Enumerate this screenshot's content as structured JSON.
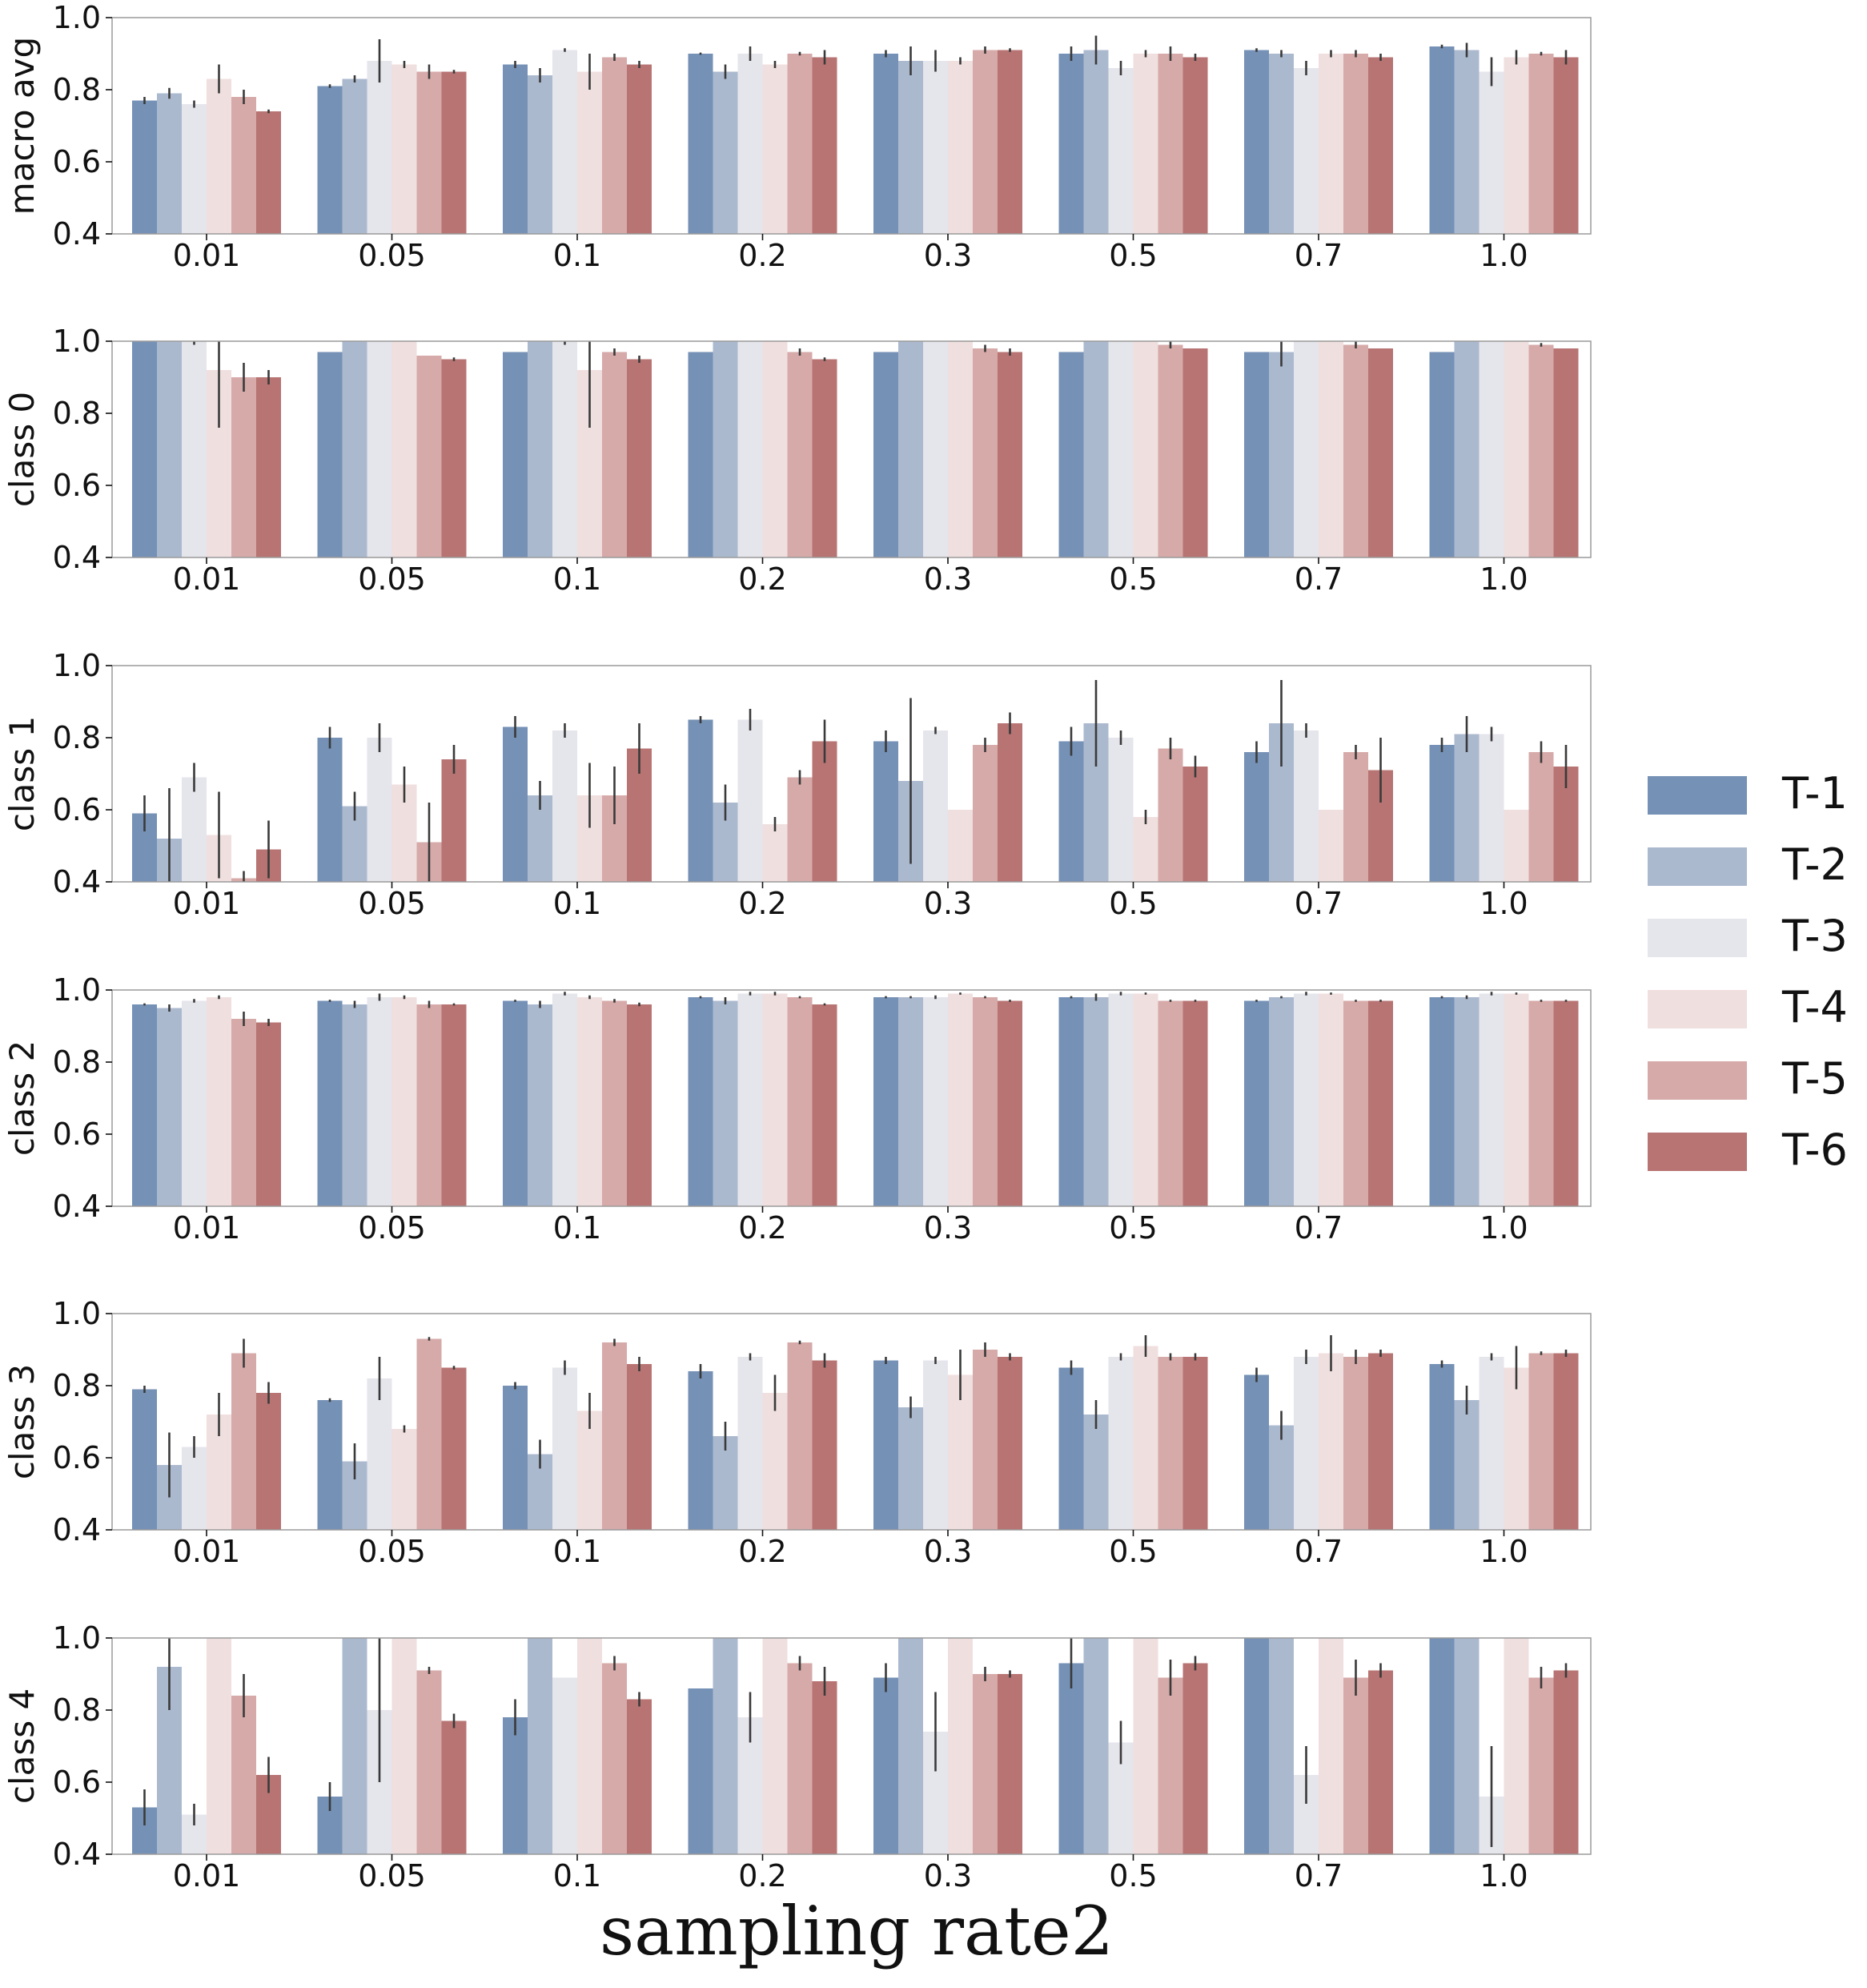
{
  "chart_data": {
    "type": "bar",
    "xlabel": "sampling rate2",
    "categories": [
      "0.01",
      "0.05",
      "0.1",
      "0.2",
      "0.3",
      "0.5",
      "0.7",
      "1.0"
    ],
    "legend": {
      "placement": "right",
      "entries": [
        {
          "name": "T-1",
          "color": "#7591b6"
        },
        {
          "name": "T-2",
          "color": "#abb9cf"
        },
        {
          "name": "T-3",
          "color": "#e5e5ec"
        },
        {
          "name": "T-4",
          "color": "#f0dfdf"
        },
        {
          "name": "T-5",
          "color": "#d6aaa9"
        },
        {
          "name": "T-6",
          "color": "#b77473"
        }
      ]
    },
    "panels": [
      {
        "ylabel": "macro avg",
        "ylim": [
          0.4,
          1.0
        ],
        "yticks": [
          "0.4",
          "0.6",
          "0.8",
          "1.0"
        ],
        "series": [
          {
            "name": "T-1",
            "values": [
              0.77,
              0.81,
              0.87,
              0.9,
              0.9,
              0.9,
              0.91,
              0.92
            ],
            "err": [
              0.01,
              0.005,
              0.01,
              0.003,
              0.01,
              0.02,
              0.005,
              0.005
            ]
          },
          {
            "name": "T-2",
            "values": [
              0.79,
              0.83,
              0.84,
              0.85,
              0.88,
              0.91,
              0.9,
              0.91
            ],
            "err": [
              0.015,
              0.01,
              0.02,
              0.02,
              0.04,
              0.04,
              0.01,
              0.02
            ]
          },
          {
            "name": "T-3",
            "values": [
              0.76,
              0.88,
              0.91,
              0.9,
              0.88,
              0.86,
              0.86,
              0.85
            ],
            "err": [
              0.01,
              0.06,
              0.005,
              0.02,
              0.03,
              0.02,
              0.02,
              0.04
            ]
          },
          {
            "name": "T-4",
            "values": [
              0.83,
              0.87,
              0.85,
              0.87,
              0.88,
              0.9,
              0.9,
              0.89
            ],
            "err": [
              0.04,
              0.01,
              0.05,
              0.01,
              0.01,
              0.01,
              0.01,
              0.02
            ]
          },
          {
            "name": "T-5",
            "values": [
              0.78,
              0.85,
              0.89,
              0.9,
              0.91,
              0.9,
              0.9,
              0.9
            ],
            "err": [
              0.02,
              0.02,
              0.01,
              0.005,
              0.01,
              0.02,
              0.01,
              0.005
            ]
          },
          {
            "name": "T-6",
            "values": [
              0.74,
              0.85,
              0.87,
              0.89,
              0.91,
              0.89,
              0.89,
              0.89
            ],
            "err": [
              0.005,
              0.005,
              0.01,
              0.02,
              0.005,
              0.01,
              0.01,
              0.02
            ]
          }
        ]
      },
      {
        "ylabel": "class 0",
        "ylim": [
          0.4,
          1.0
        ],
        "yticks": [
          "0.4",
          "0.6",
          "0.8",
          "1.0"
        ],
        "series": [
          {
            "name": "T-1",
            "values": [
              1.0,
              0.97,
              0.97,
              0.97,
              0.97,
              0.97,
              0.97,
              0.97
            ],
            "err": [
              0,
              0,
              0,
              0,
              0,
              0,
              0,
              0
            ]
          },
          {
            "name": "T-2",
            "values": [
              1.0,
              1.0,
              1.0,
              1.0,
              1.0,
              1.0,
              0.97,
              1.0
            ],
            "err": [
              0,
              0,
              0,
              0,
              0,
              0,
              0.04,
              0
            ]
          },
          {
            "name": "T-3",
            "values": [
              1.0,
              1.0,
              1.0,
              1.0,
              1.0,
              1.0,
              1.0,
              1.0
            ],
            "err": [
              0.01,
              0,
              0.01,
              0,
              0,
              0,
              0,
              0
            ]
          },
          {
            "name": "T-4",
            "values": [
              0.92,
              1.0,
              0.92,
              1.0,
              1.0,
              1.0,
              1.0,
              1.0
            ],
            "err": [
              0.16,
              0,
              0.16,
              0,
              0,
              0,
              0,
              0
            ]
          },
          {
            "name": "T-5",
            "values": [
              0.9,
              0.96,
              0.97,
              0.97,
              0.98,
              0.99,
              0.99,
              0.99
            ],
            "err": [
              0.04,
              0,
              0.01,
              0.01,
              0.01,
              0.01,
              0.01,
              0.005
            ]
          },
          {
            "name": "T-6",
            "values": [
              0.9,
              0.95,
              0.95,
              0.95,
              0.97,
              0.98,
              0.98,
              0.98
            ],
            "err": [
              0.02,
              0.005,
              0.01,
              0.005,
              0.01,
              0,
              0,
              0
            ]
          }
        ]
      },
      {
        "ylabel": "class 1",
        "ylim": [
          0.4,
          1.0
        ],
        "yticks": [
          "0.4",
          "0.6",
          "0.8",
          "1.0"
        ],
        "series": [
          {
            "name": "T-1",
            "values": [
              0.59,
              0.8,
              0.83,
              0.85,
              0.79,
              0.79,
              0.76,
              0.78
            ],
            "err": [
              0.05,
              0.03,
              0.03,
              0.01,
              0.03,
              0.04,
              0.03,
              0.02
            ]
          },
          {
            "name": "T-2",
            "values": [
              0.52,
              0.61,
              0.64,
              0.62,
              0.68,
              0.84,
              0.84,
              0.81
            ],
            "err": [
              0.14,
              0.04,
              0.04,
              0.05,
              0.23,
              0.12,
              0.12,
              0.05
            ]
          },
          {
            "name": "T-3",
            "values": [
              0.69,
              0.8,
              0.82,
              0.85,
              0.82,
              0.8,
              0.82,
              0.81
            ],
            "err": [
              0.04,
              0.04,
              0.02,
              0.03,
              0.01,
              0.02,
              0.02,
              0.02
            ]
          },
          {
            "name": "T-4",
            "values": [
              0.53,
              0.67,
              0.64,
              0.56,
              0.6,
              0.58,
              0.6,
              0.6
            ],
            "err": [
              0.12,
              0.05,
              0.09,
              0.02,
              0,
              0.02,
              0,
              0
            ]
          },
          {
            "name": "T-5",
            "values": [
              0.41,
              0.51,
              0.64,
              0.69,
              0.78,
              0.77,
              0.76,
              0.76
            ],
            "err": [
              0.02,
              0.11,
              0.08,
              0.02,
              0.02,
              0.03,
              0.02,
              0.03
            ]
          },
          {
            "name": "T-6",
            "values": [
              0.49,
              0.74,
              0.77,
              0.79,
              0.84,
              0.72,
              0.71,
              0.72
            ],
            "err": [
              0.08,
              0.04,
              0.07,
              0.06,
              0.03,
              0.03,
              0.09,
              0.06
            ]
          }
        ]
      },
      {
        "ylabel": "class 2",
        "ylim": [
          0.4,
          1.0
        ],
        "yticks": [
          "0.4",
          "0.6",
          "0.8",
          "1.0"
        ],
        "series": [
          {
            "name": "T-1",
            "values": [
              0.96,
              0.97,
              0.97,
              0.98,
              0.98,
              0.98,
              0.97,
              0.98
            ],
            "err": [
              0.003,
              0.003,
              0.003,
              0.003,
              0.003,
              0.003,
              0.003,
              0.003
            ]
          },
          {
            "name": "T-2",
            "values": [
              0.95,
              0.96,
              0.96,
              0.97,
              0.98,
              0.98,
              0.98,
              0.98
            ],
            "err": [
              0.01,
              0.01,
              0.01,
              0.01,
              0.003,
              0.01,
              0.003,
              0.005
            ]
          },
          {
            "name": "T-3",
            "values": [
              0.97,
              0.98,
              0.99,
              0.99,
              0.98,
              0.99,
              0.99,
              0.99
            ],
            "err": [
              0.005,
              0.01,
              0.005,
              0.005,
              0.005,
              0.005,
              0.005,
              0.005
            ]
          },
          {
            "name": "T-4",
            "values": [
              0.98,
              0.98,
              0.98,
              0.99,
              0.99,
              0.99,
              0.99,
              0.99
            ],
            "err": [
              0.005,
              0.005,
              0.005,
              0.005,
              0.003,
              0.003,
              0.003,
              0.003
            ]
          },
          {
            "name": "T-5",
            "values": [
              0.92,
              0.96,
              0.97,
              0.98,
              0.98,
              0.97,
              0.97,
              0.97
            ],
            "err": [
              0.02,
              0.01,
              0.005,
              0.003,
              0.003,
              0.003,
              0.003,
              0.003
            ]
          },
          {
            "name": "T-6",
            "values": [
              0.91,
              0.96,
              0.96,
              0.96,
              0.97,
              0.97,
              0.97,
              0.97
            ],
            "err": [
              0.01,
              0.003,
              0.005,
              0.003,
              0.003,
              0.003,
              0.003,
              0.003
            ]
          }
        ]
      },
      {
        "ylabel": "class 3",
        "ylim": [
          0.4,
          1.0
        ],
        "yticks": [
          "0.4",
          "0.6",
          "0.8",
          "1.0"
        ],
        "series": [
          {
            "name": "T-1",
            "values": [
              0.79,
              0.76,
              0.8,
              0.84,
              0.87,
              0.85,
              0.83,
              0.86
            ],
            "err": [
              0.01,
              0.005,
              0.01,
              0.02,
              0.01,
              0.02,
              0.02,
              0.01
            ]
          },
          {
            "name": "T-2",
            "values": [
              0.58,
              0.59,
              0.61,
              0.66,
              0.74,
              0.72,
              0.69,
              0.76
            ],
            "err": [
              0.09,
              0.05,
              0.04,
              0.04,
              0.03,
              0.04,
              0.04,
              0.04
            ]
          },
          {
            "name": "T-3",
            "values": [
              0.63,
              0.82,
              0.85,
              0.88,
              0.87,
              0.88,
              0.88,
              0.88
            ],
            "err": [
              0.03,
              0.06,
              0.02,
              0.01,
              0.01,
              0.01,
              0.02,
              0.01
            ]
          },
          {
            "name": "T-4",
            "values": [
              0.72,
              0.68,
              0.73,
              0.78,
              0.83,
              0.91,
              0.89,
              0.85
            ],
            "err": [
              0.06,
              0.01,
              0.05,
              0.05,
              0.07,
              0.03,
              0.05,
              0.06
            ]
          },
          {
            "name": "T-5",
            "values": [
              0.89,
              0.93,
              0.92,
              0.92,
              0.9,
              0.88,
              0.88,
              0.89
            ],
            "err": [
              0.04,
              0.005,
              0.01,
              0.005,
              0.02,
              0.01,
              0.02,
              0.005
            ]
          },
          {
            "name": "T-6",
            "values": [
              0.78,
              0.85,
              0.86,
              0.87,
              0.88,
              0.88,
              0.89,
              0.89
            ],
            "err": [
              0.03,
              0.005,
              0.02,
              0.02,
              0.01,
              0.01,
              0.01,
              0.01
            ]
          }
        ]
      },
      {
        "ylabel": "class 4",
        "ylim": [
          0.4,
          1.0
        ],
        "yticks": [
          "0.4",
          "0.6",
          "0.8",
          "1.0"
        ],
        "series": [
          {
            "name": "T-1",
            "values": [
              0.53,
              0.56,
              0.78,
              0.86,
              0.89,
              0.93,
              1.0,
              1.0
            ],
            "err": [
              0.05,
              0.04,
              0.05,
              0,
              0.04,
              0.07,
              0,
              0
            ]
          },
          {
            "name": "T-2",
            "values": [
              0.92,
              1.0,
              1.0,
              1.0,
              1.0,
              1.0,
              1.0,
              1.0
            ],
            "err": [
              0.12,
              0,
              0,
              0,
              0,
              0,
              0,
              0
            ]
          },
          {
            "name": "T-3",
            "values": [
              0.51,
              0.8,
              0.89,
              0.78,
              0.74,
              0.71,
              0.62,
              0.56
            ],
            "err": [
              0.03,
              0.2,
              0,
              0.07,
              0.11,
              0.06,
              0.08,
              0.14
            ]
          },
          {
            "name": "T-4",
            "values": [
              1.0,
              1.0,
              1.0,
              1.0,
              1.0,
              1.0,
              1.0,
              1.0
            ],
            "err": [
              0,
              0,
              0,
              0,
              0,
              0,
              0,
              0
            ]
          },
          {
            "name": "T-5",
            "values": [
              0.84,
              0.91,
              0.93,
              0.93,
              0.9,
              0.89,
              0.89,
              0.89
            ],
            "err": [
              0.06,
              0.01,
              0.02,
              0.02,
              0.02,
              0.05,
              0.05,
              0.03
            ]
          },
          {
            "name": "T-6",
            "values": [
              0.62,
              0.77,
              0.83,
              0.88,
              0.9,
              0.93,
              0.91,
              0.91
            ],
            "err": [
              0.05,
              0.02,
              0.02,
              0.04,
              0.01,
              0.02,
              0.02,
              0.02
            ]
          }
        ]
      }
    ]
  }
}
